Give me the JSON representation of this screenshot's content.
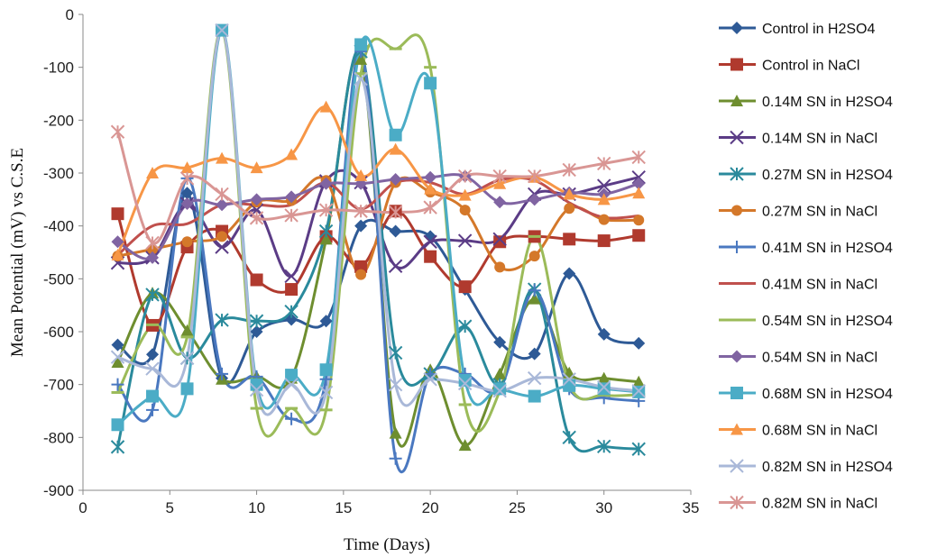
{
  "chart_data": {
    "type": "line",
    "xlabel": "Time (Days)",
    "ylabel": "Mean Potential (mV) vs C.S.E",
    "xlim": [
      0,
      35
    ],
    "ylim": [
      -900,
      0
    ],
    "x_ticks": [
      0,
      5,
      10,
      15,
      20,
      25,
      30,
      35
    ],
    "y_ticks": [
      0,
      -100,
      -200,
      -300,
      -400,
      -500,
      -600,
      -700,
      -800,
      -900
    ],
    "grid": false,
    "legend_position": "right",
    "x": [
      2,
      4,
      6,
      8,
      10,
      12,
      14,
      16,
      18,
      20,
      22,
      24,
      26,
      28,
      30,
      32
    ],
    "series": [
      {
        "name": "Control in H2SO4",
        "color": "#2E5A96",
        "marker": "diamond",
        "values": [
          -625,
          -643,
          -338,
          -688,
          -600,
          -577,
          -580,
          -400,
          -410,
          -420,
          -520,
          -620,
          -642,
          -490,
          -605,
          -622
        ]
      },
      {
        "name": "Control in NaCl",
        "color": "#B03A2E",
        "marker": "square",
        "values": [
          -377,
          -588,
          -440,
          -410,
          -502,
          -520,
          -420,
          -477,
          -372,
          -458,
          -515,
          -430,
          -420,
          -425,
          -428,
          -418
        ]
      },
      {
        "name": "0.14M SN in H2SO4",
        "color": "#6E8E2F",
        "marker": "triangle",
        "values": [
          -658,
          -527,
          -598,
          -690,
          -685,
          -688,
          -425,
          -85,
          -792,
          -672,
          -815,
          -680,
          -538,
          -678,
          -688,
          -695
        ]
      },
      {
        "name": "0.14M SN in NaCl",
        "color": "#5B3C86",
        "marker": "x",
        "values": [
          -470,
          -460,
          -358,
          -440,
          -370,
          -495,
          -315,
          -318,
          -476,
          -430,
          -428,
          -425,
          -340,
          -340,
          -324,
          -308
        ]
      },
      {
        "name": "0.27M SN in H2SO4",
        "color": "#2A8A9C",
        "marker": "star",
        "values": [
          -818,
          -530,
          -650,
          -578,
          -580,
          -562,
          -410,
          -70,
          -640,
          -680,
          -590,
          -700,
          -520,
          -800,
          -817,
          -822
        ]
      },
      {
        "name": "0.27M SN in NaCl",
        "color": "#D4782A",
        "marker": "circle",
        "values": [
          -457,
          -444,
          -430,
          -420,
          -355,
          -352,
          -314,
          -492,
          -318,
          -336,
          -370,
          -478,
          -457,
          -367,
          -388,
          -389
        ]
      },
      {
        "name": "0.41M SN in H2SO4",
        "color": "#4A78C0",
        "marker": "plus",
        "values": [
          -700,
          -748,
          -310,
          -680,
          -685,
          -765,
          -690,
          -70,
          -840,
          -680,
          -680,
          -708,
          -522,
          -708,
          -725,
          -731
        ]
      },
      {
        "name": "0.41M SN in NaCl",
        "color": "#C0504D",
        "marker": "none",
        "values": [
          -455,
          -400,
          -396,
          -360,
          -360,
          -360,
          -318,
          -368,
          -318,
          -318,
          -340,
          -313,
          -314,
          -356,
          -384,
          -381
        ]
      },
      {
        "name": "0.54M SN in H2SO4",
        "color": "#9BBB59",
        "marker": "dash",
        "values": [
          -715,
          -587,
          -610,
          -30,
          -745,
          -745,
          -748,
          -112,
          -65,
          -100,
          -738,
          -712,
          -420,
          -700,
          -720,
          -719
        ]
      },
      {
        "name": "0.54M SN in NaCl",
        "color": "#8064A2",
        "marker": "diamond",
        "values": [
          -430,
          -460,
          -358,
          -360,
          -350,
          -345,
          -320,
          -320,
          -312,
          -308,
          -306,
          -355,
          -350,
          -337,
          -340,
          -320
        ]
      },
      {
        "name": "0.68M SN in H2SO4",
        "color": "#4BACC6",
        "marker": "square",
        "values": [
          -776,
          -722,
          -708,
          -30,
          -700,
          -682,
          -672,
          -57,
          -228,
          -130,
          -692,
          -708,
          -722,
          -702,
          -708,
          -714
        ]
      },
      {
        "name": "0.68M SN in NaCl",
        "color": "#F79646",
        "marker": "triangle",
        "values": [
          -455,
          -300,
          -290,
          -272,
          -290,
          -265,
          -175,
          -305,
          -255,
          -330,
          -342,
          -320,
          -308,
          -340,
          -350,
          -338
        ]
      },
      {
        "name": "0.82M SN in H2SO4",
        "color": "#A9B8D8",
        "marker": "x",
        "values": [
          -648,
          -670,
          -650,
          -30,
          -710,
          -700,
          -715,
          -122,
          -700,
          -690,
          -698,
          -712,
          -688,
          -690,
          -705,
          -712
        ]
      },
      {
        "name": "0.82M SN in NaCl",
        "color": "#D99694",
        "marker": "star",
        "values": [
          -222,
          -432,
          -310,
          -340,
          -385,
          -380,
          -370,
          -372,
          -374,
          -365,
          -306,
          -306,
          -306,
          -294,
          -282,
          -270
        ]
      }
    ]
  }
}
